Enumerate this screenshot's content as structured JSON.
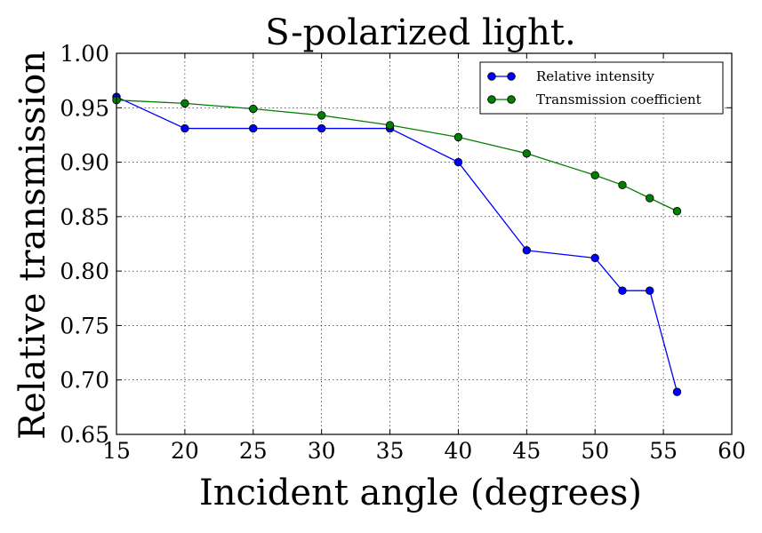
{
  "chart_data": {
    "type": "line",
    "title": "S-polarized light.",
    "xlabel": "Incident angle (degrees)",
    "ylabel": "Relative transmission",
    "xlim": [
      15,
      60
    ],
    "ylim": [
      0.65,
      1.0
    ],
    "xticks": [
      15,
      20,
      25,
      30,
      35,
      40,
      45,
      50,
      55,
      60
    ],
    "xtick_labels": [
      "15",
      "20",
      "25",
      "30",
      "35",
      "40",
      "45",
      "50",
      "55",
      "60"
    ],
    "yticks": [
      0.65,
      0.7,
      0.75,
      0.8,
      0.85,
      0.9,
      0.95,
      1.0
    ],
    "ytick_labels": [
      "0.65",
      "0.70",
      "0.75",
      "0.80",
      "0.85",
      "0.90",
      "0.95",
      "1.00"
    ],
    "grid": true,
    "legend_position": "top-right",
    "series": [
      {
        "name": "Relative intensity",
        "color": "#0000ff",
        "marker": "circle",
        "x": [
          15,
          20,
          25,
          30,
          35,
          40,
          45,
          50,
          52,
          54,
          56
        ],
        "y": [
          0.96,
          0.931,
          0.931,
          0.931,
          0.931,
          0.9,
          0.819,
          0.812,
          0.782,
          0.782,
          0.689
        ]
      },
      {
        "name": "Transmission coefficient",
        "color": "#007f00",
        "marker": "circle",
        "x": [
          15,
          20,
          25,
          30,
          35,
          40,
          45,
          50,
          52,
          54,
          56
        ],
        "y": [
          0.957,
          0.954,
          0.949,
          0.943,
          0.934,
          0.923,
          0.908,
          0.888,
          0.879,
          0.867,
          0.855
        ]
      }
    ]
  }
}
